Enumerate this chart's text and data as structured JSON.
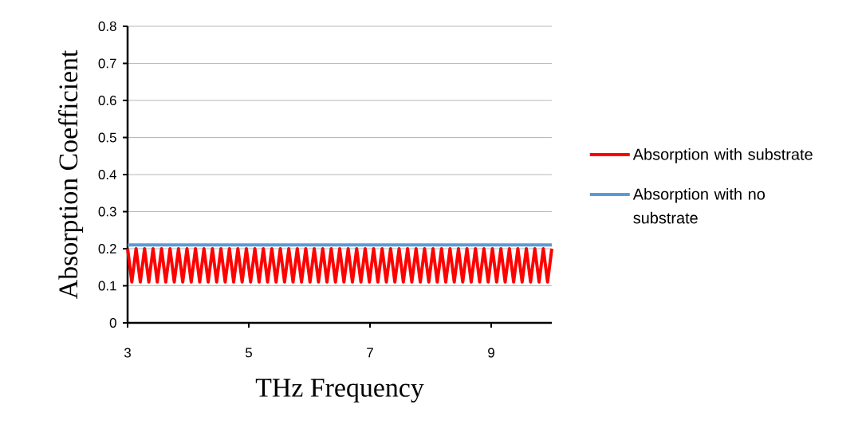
{
  "chart_data": {
    "type": "line",
    "xlabel": "THz Frequency",
    "ylabel": "Absorption Coefficient",
    "xlim": [
      3,
      10
    ],
    "xticks": [
      3,
      5,
      7,
      9
    ],
    "ylim": [
      0,
      0.8
    ],
    "yticks": [
      0,
      0.1,
      0.2,
      0.3,
      0.4,
      0.5,
      0.6,
      0.7,
      0.8
    ],
    "grid": "y",
    "legend": "right",
    "line_style": "solid",
    "series": [
      {
        "name": "Absorption with substrate",
        "color": "#ff0000",
        "x": [
          3,
          3.07,
          3.14,
          3.21,
          3.28,
          3.35,
          3.42,
          3.49,
          3.56,
          3.63,
          3.7,
          3.77,
          3.84,
          3.91,
          3.98,
          4.05,
          4.12,
          4.19,
          4.26,
          4.33,
          4.4,
          4.47,
          4.54,
          4.61,
          4.68,
          4.75,
          4.82,
          4.89,
          4.96,
          5.03,
          5.1,
          5.17,
          5.24,
          5.31,
          5.38,
          5.45,
          5.52,
          5.59,
          5.66,
          5.73,
          5.8,
          5.87,
          5.94,
          6.01,
          6.08,
          6.15,
          6.22,
          6.29,
          6.36,
          6.43,
          6.5,
          6.57,
          6.64,
          6.71,
          6.78,
          6.85,
          6.92,
          6.99,
          7.06,
          7.13,
          7.2,
          7.27,
          7.34,
          7.41,
          7.48,
          7.55,
          7.62,
          7.69,
          7.76,
          7.83,
          7.9,
          7.97,
          8.04,
          8.11,
          8.18,
          8.25,
          8.32,
          8.39,
          8.46,
          8.53,
          8.6,
          8.67,
          8.74,
          8.81,
          8.88,
          8.95,
          9.02,
          9.09,
          9.16,
          9.23,
          9.3,
          9.37,
          9.44,
          9.51,
          9.58,
          9.65,
          9.72,
          9.79,
          9.86,
          9.93,
          10
        ],
        "values": [
          0.2,
          0.11,
          0.2,
          0.11,
          0.2,
          0.11,
          0.2,
          0.11,
          0.2,
          0.11,
          0.2,
          0.11,
          0.2,
          0.11,
          0.2,
          0.11,
          0.2,
          0.11,
          0.2,
          0.11,
          0.2,
          0.11,
          0.2,
          0.11,
          0.2,
          0.11,
          0.2,
          0.11,
          0.2,
          0.11,
          0.2,
          0.11,
          0.2,
          0.11,
          0.2,
          0.11,
          0.2,
          0.11,
          0.2,
          0.11,
          0.2,
          0.11,
          0.2,
          0.11,
          0.2,
          0.11,
          0.2,
          0.11,
          0.2,
          0.11,
          0.2,
          0.11,
          0.2,
          0.11,
          0.2,
          0.11,
          0.2,
          0.11,
          0.2,
          0.11,
          0.2,
          0.11,
          0.2,
          0.11,
          0.2,
          0.11,
          0.2,
          0.11,
          0.2,
          0.11,
          0.2,
          0.11,
          0.2,
          0.11,
          0.2,
          0.11,
          0.2,
          0.11,
          0.2,
          0.11,
          0.2,
          0.11,
          0.2,
          0.11,
          0.2,
          0.11,
          0.2,
          0.11,
          0.2,
          0.11,
          0.2,
          0.11,
          0.2,
          0.11,
          0.2,
          0.11,
          0.2,
          0.11,
          0.2,
          0.11,
          0.2
        ]
      },
      {
        "name": "Absorption with no substrate",
        "color": "#5b9bd5",
        "x": [
          3,
          10
        ],
        "values": [
          0.21,
          0.21
        ]
      }
    ]
  }
}
